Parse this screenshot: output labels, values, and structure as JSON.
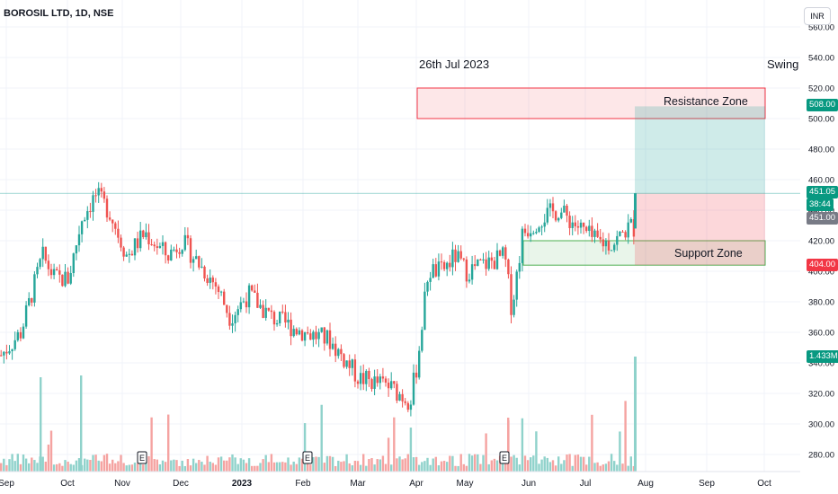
{
  "header": {
    "symbol_title": "BOROSIL LTD, 1D, NSE",
    "currency_button": "INR"
  },
  "annotations": {
    "date_note": "26th Jul 2023",
    "style_note": "Swing",
    "resistance_label": "Resistance Zone",
    "support_label": "Support Zone"
  },
  "badges": {
    "target": "508.00",
    "last_price": "451.05",
    "countdown": "38:44",
    "entry": "451.00",
    "stop": "404.00",
    "volume": "1.433M"
  },
  "colors": {
    "up": "#26a69a",
    "down": "#ef5350",
    "vol_up": "#8fd2cb",
    "vol_down": "#f5a3a1",
    "grid": "#f0f3fa",
    "axis_text": "#131722"
  },
  "chart_data": {
    "type": "candlestick",
    "y_axis_ticks": [
      280,
      300,
      320,
      340,
      360,
      380,
      400,
      420,
      440,
      460,
      480,
      500,
      520,
      540,
      560
    ],
    "x_axis_labels": [
      "Sep",
      "Oct",
      "Nov",
      "Dec",
      "2023",
      "Feb",
      "Mar",
      "Apr",
      "May",
      "Jun",
      "Jul",
      "Aug",
      "Sep",
      "Oct"
    ],
    "earnings_markers": [
      "E",
      "E",
      "E"
    ],
    "series_close_approx": [
      {
        "date": "2022-09",
        "close": 350
      },
      {
        "date": "2022-10",
        "close": 430
      },
      {
        "date": "2022-11",
        "close": 440
      },
      {
        "date": "2022-12",
        "close": 395
      },
      {
        "date": "2023-01",
        "close": 375
      },
      {
        "date": "2023-02",
        "close": 365
      },
      {
        "date": "2023-03",
        "close": 310
      },
      {
        "date": "2023-04",
        "close": 400
      },
      {
        "date": "2023-05",
        "close": 395
      },
      {
        "date": "2023-06",
        "close": 430
      },
      {
        "date": "2023-07",
        "close": 425
      },
      {
        "date": "2023-07-26",
        "close": 451.05
      }
    ],
    "resistance_zone": [
      500,
      520
    ],
    "support_zone": [
      404,
      420
    ],
    "position": {
      "entry": 451,
      "target": 508,
      "stop": 404
    },
    "last_price": 451.05,
    "last_volume": "1.433M"
  }
}
